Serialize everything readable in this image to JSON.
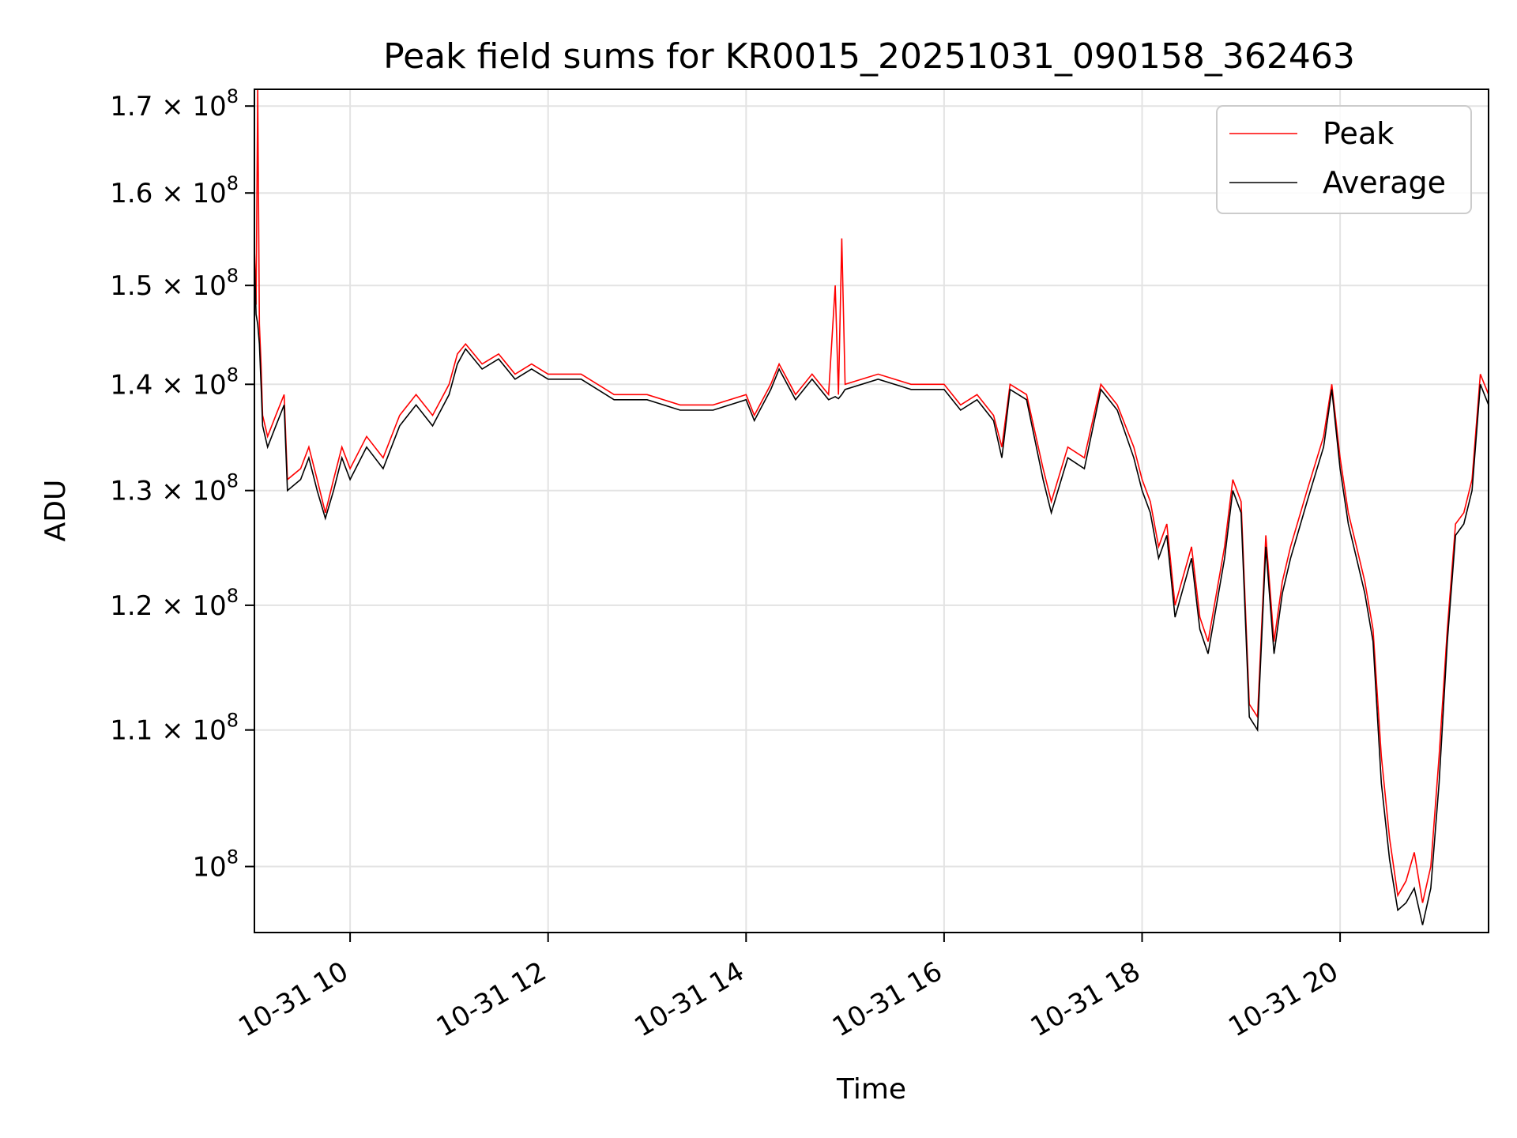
{
  "chart_data": {
    "type": "line",
    "title": "Peak field sums for KR0015_20251031_090158_362463",
    "xlabel": "Time",
    "ylabel": "ADU",
    "yscale": "log",
    "xlim": [
      "2025-10-31T09:02:00",
      "2025-10-31T21:30:00"
    ],
    "ylim": [
      95500000,
      172000000
    ],
    "grid": true,
    "legend": "top-right",
    "x_ticks": [
      {
        "value": "2025-10-31T10:00:00",
        "label": "10-31 10"
      },
      {
        "value": "2025-10-31T12:00:00",
        "label": "10-31 12"
      },
      {
        "value": "2025-10-31T14:00:00",
        "label": "10-31 14"
      },
      {
        "value": "2025-10-31T16:00:00",
        "label": "10-31 16"
      },
      {
        "value": "2025-10-31T18:00:00",
        "label": "10-31 18"
      },
      {
        "value": "2025-10-31T20:00:00",
        "label": "10-31 20"
      }
    ],
    "y_ticks": [
      {
        "value": 100000000,
        "mant": "10",
        "exp": "8"
      },
      {
        "value": 110000000,
        "mant": "1.1 × 10",
        "exp": "8"
      },
      {
        "value": 120000000,
        "mant": "1.2 × 10",
        "exp": "8"
      },
      {
        "value": 130000000,
        "mant": "1.3 × 10",
        "exp": "8"
      },
      {
        "value": 140000000,
        "mant": "1.4 × 10",
        "exp": "8"
      },
      {
        "value": 150000000,
        "mant": "1.5 × 10",
        "exp": "8"
      },
      {
        "value": 160000000,
        "mant": "1.6 × 10",
        "exp": "8"
      },
      {
        "value": 170000000,
        "mant": "1.7 × 10",
        "exp": "8"
      }
    ],
    "series": [
      {
        "name": "Peak",
        "color": "#ff0000",
        "points": [
          [
            "2025-10-31T09:02:00",
            154000000
          ],
          [
            "2025-10-31T09:03:00",
            148000000
          ],
          [
            "2025-10-31T09:04:00",
            172000000
          ],
          [
            "2025-10-31T09:05:00",
            146000000
          ],
          [
            "2025-10-31T09:06:00",
            142000000
          ],
          [
            "2025-10-31T09:07:00",
            137000000
          ],
          [
            "2025-10-31T09:10:00",
            135000000
          ],
          [
            "2025-10-31T09:15:00",
            137000000
          ],
          [
            "2025-10-31T09:20:00",
            139000000
          ],
          [
            "2025-10-31T09:22:00",
            131000000
          ],
          [
            "2025-10-31T09:30:00",
            132000000
          ],
          [
            "2025-10-31T09:35:00",
            134000000
          ],
          [
            "2025-10-31T09:40:00",
            131000000
          ],
          [
            "2025-10-31T09:45:00",
            128000000
          ],
          [
            "2025-10-31T09:50:00",
            131000000
          ],
          [
            "2025-10-31T09:55:00",
            134000000
          ],
          [
            "2025-10-31T10:00:00",
            132000000
          ],
          [
            "2025-10-31T10:10:00",
            135000000
          ],
          [
            "2025-10-31T10:20:00",
            133000000
          ],
          [
            "2025-10-31T10:30:00",
            137000000
          ],
          [
            "2025-10-31T10:40:00",
            139000000
          ],
          [
            "2025-10-31T10:50:00",
            137000000
          ],
          [
            "2025-10-31T11:00:00",
            140000000
          ],
          [
            "2025-10-31T11:05:00",
            143000000
          ],
          [
            "2025-10-31T11:10:00",
            144000000
          ],
          [
            "2025-10-31T11:20:00",
            142000000
          ],
          [
            "2025-10-31T11:30:00",
            143000000
          ],
          [
            "2025-10-31T11:40:00",
            141000000
          ],
          [
            "2025-10-31T11:50:00",
            142000000
          ],
          [
            "2025-10-31T12:00:00",
            141000000
          ],
          [
            "2025-10-31T12:20:00",
            141000000
          ],
          [
            "2025-10-31T12:40:00",
            139000000
          ],
          [
            "2025-10-31T13:00:00",
            139000000
          ],
          [
            "2025-10-31T13:20:00",
            138000000
          ],
          [
            "2025-10-31T13:40:00",
            138000000
          ],
          [
            "2025-10-31T14:00:00",
            139000000
          ],
          [
            "2025-10-31T14:05:00",
            137000000
          ],
          [
            "2025-10-31T14:15:00",
            140000000
          ],
          [
            "2025-10-31T14:20:00",
            142000000
          ],
          [
            "2025-10-31T14:30:00",
            139000000
          ],
          [
            "2025-10-31T14:40:00",
            141000000
          ],
          [
            "2025-10-31T14:50:00",
            139000000
          ],
          [
            "2025-10-31T14:54:00",
            150000000
          ],
          [
            "2025-10-31T14:56:00",
            139000000
          ],
          [
            "2025-10-31T14:58:00",
            155000000
          ],
          [
            "2025-10-31T15:00:00",
            140000000
          ],
          [
            "2025-10-31T15:20:00",
            141000000
          ],
          [
            "2025-10-31T15:40:00",
            140000000
          ],
          [
            "2025-10-31T16:00:00",
            140000000
          ],
          [
            "2025-10-31T16:10:00",
            138000000
          ],
          [
            "2025-10-31T16:20:00",
            139000000
          ],
          [
            "2025-10-31T16:30:00",
            137000000
          ],
          [
            "2025-10-31T16:35:00",
            134000000
          ],
          [
            "2025-10-31T16:40:00",
            140000000
          ],
          [
            "2025-10-31T16:50:00",
            139000000
          ],
          [
            "2025-10-31T17:00:00",
            132000000
          ],
          [
            "2025-10-31T17:05:00",
            129000000
          ],
          [
            "2025-10-31T17:15:00",
            134000000
          ],
          [
            "2025-10-31T17:25:00",
            133000000
          ],
          [
            "2025-10-31T17:35:00",
            140000000
          ],
          [
            "2025-10-31T17:45:00",
            138000000
          ],
          [
            "2025-10-31T17:55:00",
            134000000
          ],
          [
            "2025-10-31T18:00:00",
            131000000
          ],
          [
            "2025-10-31T18:05:00",
            129000000
          ],
          [
            "2025-10-31T18:10:00",
            125000000
          ],
          [
            "2025-10-31T18:15:00",
            127000000
          ],
          [
            "2025-10-31T18:20:00",
            120000000
          ],
          [
            "2025-10-31T18:30:00",
            125000000
          ],
          [
            "2025-10-31T18:35:00",
            119000000
          ],
          [
            "2025-10-31T18:40:00",
            117000000
          ],
          [
            "2025-10-31T18:50:00",
            125000000
          ],
          [
            "2025-10-31T18:55:00",
            131000000
          ],
          [
            "2025-10-31T19:00:00",
            129000000
          ],
          [
            "2025-10-31T19:05:00",
            112000000
          ],
          [
            "2025-10-31T19:10:00",
            111000000
          ],
          [
            "2025-10-31T19:15:00",
            126000000
          ],
          [
            "2025-10-31T19:20:00",
            117000000
          ],
          [
            "2025-10-31T19:25:00",
            122000000
          ],
          [
            "2025-10-31T19:30:00",
            125000000
          ],
          [
            "2025-10-31T19:40:00",
            130000000
          ],
          [
            "2025-10-31T19:50:00",
            135000000
          ],
          [
            "2025-10-31T19:55:00",
            140000000
          ],
          [
            "2025-10-31T20:00:00",
            133000000
          ],
          [
            "2025-10-31T20:05:00",
            128000000
          ],
          [
            "2025-10-31T20:10:00",
            125000000
          ],
          [
            "2025-10-31T20:15:00",
            122000000
          ],
          [
            "2025-10-31T20:20:00",
            118000000
          ],
          [
            "2025-10-31T20:25:00",
            108000000
          ],
          [
            "2025-10-31T20:30:00",
            102000000
          ],
          [
            "2025-10-31T20:35:00",
            98000000
          ],
          [
            "2025-10-31T20:40:00",
            99000000
          ],
          [
            "2025-10-31T20:45:00",
            101000000
          ],
          [
            "2025-10-31T20:50:00",
            97500000
          ],
          [
            "2025-10-31T20:55:00",
            100000000
          ],
          [
            "2025-10-31T21:00:00",
            108000000
          ],
          [
            "2025-10-31T21:05:00",
            118000000
          ],
          [
            "2025-10-31T21:10:00",
            127000000
          ],
          [
            "2025-10-31T21:15:00",
            128000000
          ],
          [
            "2025-10-31T21:20:00",
            131000000
          ],
          [
            "2025-10-31T21:25:00",
            141000000
          ],
          [
            "2025-10-31T21:30:00",
            139000000
          ]
        ]
      },
      {
        "name": "Average",
        "color": "#000000",
        "points": [
          [
            "2025-10-31T09:02:00",
            153000000
          ],
          [
            "2025-10-31T09:03:00",
            147000000
          ],
          [
            "2025-10-31T09:04:00",
            146000000
          ],
          [
            "2025-10-31T09:05:00",
            144000000
          ],
          [
            "2025-10-31T09:06:00",
            140000000
          ],
          [
            "2025-10-31T09:07:00",
            136000000
          ],
          [
            "2025-10-31T09:10:00",
            134000000
          ],
          [
            "2025-10-31T09:15:00",
            136000000
          ],
          [
            "2025-10-31T09:20:00",
            138000000
          ],
          [
            "2025-10-31T09:22:00",
            130000000
          ],
          [
            "2025-10-31T09:30:00",
            131000000
          ],
          [
            "2025-10-31T09:35:00",
            133000000
          ],
          [
            "2025-10-31T09:40:00",
            130000000
          ],
          [
            "2025-10-31T09:45:00",
            127500000
          ],
          [
            "2025-10-31T09:50:00",
            130000000
          ],
          [
            "2025-10-31T09:55:00",
            133000000
          ],
          [
            "2025-10-31T10:00:00",
            131000000
          ],
          [
            "2025-10-31T10:10:00",
            134000000
          ],
          [
            "2025-10-31T10:20:00",
            132000000
          ],
          [
            "2025-10-31T10:30:00",
            136000000
          ],
          [
            "2025-10-31T10:40:00",
            138000000
          ],
          [
            "2025-10-31T10:50:00",
            136000000
          ],
          [
            "2025-10-31T11:00:00",
            139000000
          ],
          [
            "2025-10-31T11:05:00",
            142000000
          ],
          [
            "2025-10-31T11:10:00",
            143500000
          ],
          [
            "2025-10-31T11:20:00",
            141500000
          ],
          [
            "2025-10-31T11:30:00",
            142500000
          ],
          [
            "2025-10-31T11:40:00",
            140500000
          ],
          [
            "2025-10-31T11:50:00",
            141500000
          ],
          [
            "2025-10-31T12:00:00",
            140500000
          ],
          [
            "2025-10-31T12:20:00",
            140500000
          ],
          [
            "2025-10-31T12:40:00",
            138500000
          ],
          [
            "2025-10-31T13:00:00",
            138500000
          ],
          [
            "2025-10-31T13:20:00",
            137500000
          ],
          [
            "2025-10-31T13:40:00",
            137500000
          ],
          [
            "2025-10-31T14:00:00",
            138500000
          ],
          [
            "2025-10-31T14:05:00",
            136500000
          ],
          [
            "2025-10-31T14:15:00",
            139500000
          ],
          [
            "2025-10-31T14:20:00",
            141500000
          ],
          [
            "2025-10-31T14:30:00",
            138500000
          ],
          [
            "2025-10-31T14:40:00",
            140500000
          ],
          [
            "2025-10-31T14:50:00",
            138500000
          ],
          [
            "2025-10-31T14:54:00",
            138800000
          ],
          [
            "2025-10-31T14:56:00",
            138600000
          ],
          [
            "2025-10-31T14:58:00",
            139000000
          ],
          [
            "2025-10-31T15:00:00",
            139500000
          ],
          [
            "2025-10-31T15:20:00",
            140500000
          ],
          [
            "2025-10-31T15:40:00",
            139500000
          ],
          [
            "2025-10-31T16:00:00",
            139500000
          ],
          [
            "2025-10-31T16:10:00",
            137500000
          ],
          [
            "2025-10-31T16:20:00",
            138500000
          ],
          [
            "2025-10-31T16:30:00",
            136500000
          ],
          [
            "2025-10-31T16:35:00",
            133000000
          ],
          [
            "2025-10-31T16:40:00",
            139500000
          ],
          [
            "2025-10-31T16:50:00",
            138500000
          ],
          [
            "2025-10-31T17:00:00",
            131000000
          ],
          [
            "2025-10-31T17:05:00",
            128000000
          ],
          [
            "2025-10-31T17:15:00",
            133000000
          ],
          [
            "2025-10-31T17:25:00",
            132000000
          ],
          [
            "2025-10-31T17:35:00",
            139500000
          ],
          [
            "2025-10-31T17:45:00",
            137500000
          ],
          [
            "2025-10-31T17:55:00",
            133000000
          ],
          [
            "2025-10-31T18:00:00",
            130000000
          ],
          [
            "2025-10-31T18:05:00",
            128000000
          ],
          [
            "2025-10-31T18:10:00",
            124000000
          ],
          [
            "2025-10-31T18:15:00",
            126000000
          ],
          [
            "2025-10-31T18:20:00",
            119000000
          ],
          [
            "2025-10-31T18:30:00",
            124000000
          ],
          [
            "2025-10-31T18:35:00",
            118000000
          ],
          [
            "2025-10-31T18:40:00",
            116000000
          ],
          [
            "2025-10-31T18:50:00",
            124000000
          ],
          [
            "2025-10-31T18:55:00",
            130000000
          ],
          [
            "2025-10-31T19:00:00",
            128000000
          ],
          [
            "2025-10-31T19:05:00",
            111000000
          ],
          [
            "2025-10-31T19:10:00",
            110000000
          ],
          [
            "2025-10-31T19:15:00",
            125000000
          ],
          [
            "2025-10-31T19:20:00",
            116000000
          ],
          [
            "2025-10-31T19:25:00",
            121000000
          ],
          [
            "2025-10-31T19:30:00",
            124000000
          ],
          [
            "2025-10-31T19:40:00",
            129000000
          ],
          [
            "2025-10-31T19:50:00",
            134000000
          ],
          [
            "2025-10-31T19:55:00",
            139500000
          ],
          [
            "2025-10-31T20:00:00",
            132000000
          ],
          [
            "2025-10-31T20:05:00",
            127000000
          ],
          [
            "2025-10-31T20:10:00",
            124000000
          ],
          [
            "2025-10-31T20:15:00",
            121000000
          ],
          [
            "2025-10-31T20:20:00",
            117000000
          ],
          [
            "2025-10-31T20:25:00",
            106000000
          ],
          [
            "2025-10-31T20:30:00",
            100500000
          ],
          [
            "2025-10-31T20:35:00",
            97000000
          ],
          [
            "2025-10-31T20:40:00",
            97500000
          ],
          [
            "2025-10-31T20:45:00",
            98500000
          ],
          [
            "2025-10-31T20:50:00",
            96000000
          ],
          [
            "2025-10-31T20:55:00",
            98500000
          ],
          [
            "2025-10-31T21:00:00",
            106000000
          ],
          [
            "2025-10-31T21:05:00",
            117000000
          ],
          [
            "2025-10-31T21:10:00",
            126000000
          ],
          [
            "2025-10-31T21:15:00",
            127000000
          ],
          [
            "2025-10-31T21:20:00",
            130000000
          ],
          [
            "2025-10-31T21:25:00",
            140000000
          ],
          [
            "2025-10-31T21:30:00",
            138000000
          ]
        ]
      }
    ]
  }
}
